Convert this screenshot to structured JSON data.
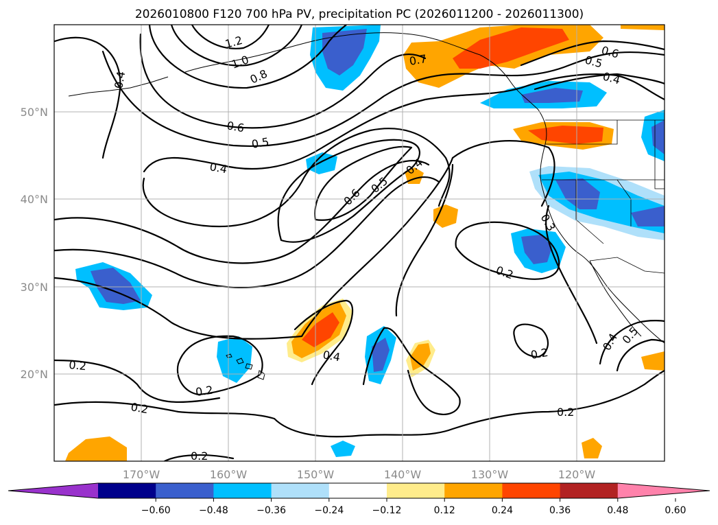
{
  "title": "2026010800 F120 700 hPa PV, precipitation PC (2026011200 - 2026011300)",
  "lat_ticks": [
    "50°N",
    "40°N",
    "30°N",
    "20°N"
  ],
  "lon_ticks": [
    "170°W",
    "160°W",
    "150°W",
    "140°W",
    "130°W",
    "120°W"
  ],
  "contour_labels": [
    "1.2",
    "1.0",
    "0.8",
    "0.6",
    "0.5",
    "0.4",
    "0.4",
    "0.6",
    "0.5",
    "0.4",
    "0.7",
    "0.6",
    "0.5",
    "0.4",
    "0.3",
    "0.2",
    "0.2",
    "0.2",
    "0.2",
    "0.2",
    "0.4",
    "0.2",
    "0.2",
    "0.4",
    "0.5"
  ],
  "colorbar": {
    "ticks": [
      "−0.60",
      "−0.48",
      "−0.36",
      "−0.24",
      "−0.12",
      "0.12",
      "0.24",
      "0.36",
      "0.48",
      "0.60"
    ],
    "colors": [
      "#9932cc",
      "#00008b",
      "#3a5fcd",
      "#00bfff",
      "#afe0fa",
      "#ffffff",
      "#ffec8b",
      "#ffa500",
      "#ff4500",
      "#b22222",
      "#ff82ab"
    ]
  },
  "fill_colors": {
    "neg1": "#afe0fa",
    "neg2": "#00bfff",
    "neg3": "#3a5fcd",
    "neg4": "#00008b",
    "pos1": "#ffec8b",
    "pos2": "#ffa500",
    "pos3": "#ff4500",
    "pos4": "#b22222"
  }
}
